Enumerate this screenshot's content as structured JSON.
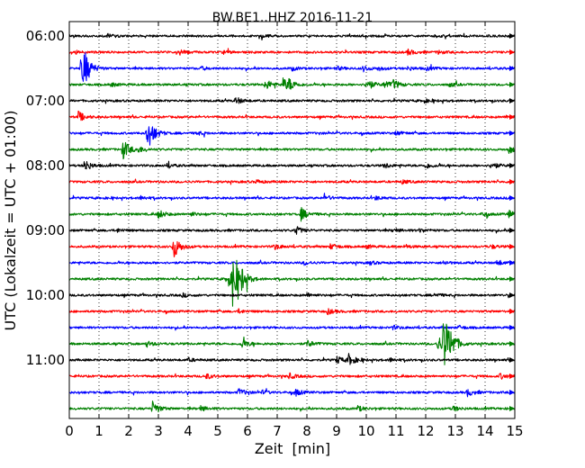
{
  "chart_data": {
    "type": "line",
    "title": "BW.BE1..HHZ 2016-11-21",
    "xlabel": "Zeit  [min]",
    "ylabel": "UTC (Lokalzeit = UTC + 01:00)",
    "xlim": [
      0,
      15
    ],
    "xticks": [
      "0",
      "1",
      "2",
      "3",
      "4",
      "5",
      "6",
      "7",
      "8",
      "9",
      "10",
      "11",
      "12",
      "13",
      "14",
      "15"
    ],
    "yticks": [
      {
        "label": "06:00",
        "row": 0
      },
      {
        "label": "07:00",
        "row": 4
      },
      {
        "label": "08:00",
        "row": 8
      },
      {
        "label": "09:00",
        "row": 12
      },
      {
        "label": "10:00",
        "row": 16
      },
      {
        "label": "11:00",
        "row": 20
      }
    ],
    "row_duration_min": 15,
    "grid": {
      "x": true,
      "y": false,
      "style": "dotted"
    },
    "color_cycle": [
      "#000000",
      "#ff0000",
      "#0000ff",
      "#008000"
    ],
    "noise_level": 1.2,
    "rows": [
      {
        "start": "06:00",
        "color": "#000000",
        "events": [
          [
            1.3,
            2
          ],
          [
            6.5,
            1.5
          ],
          [
            12.3,
            1.5
          ]
        ]
      },
      {
        "start": "06:15",
        "color": "#ff0000",
        "events": [
          [
            0.2,
            1.5
          ],
          [
            3.7,
            2.5
          ],
          [
            5.2,
            1.5
          ],
          [
            11.4,
            3
          ],
          [
            12.4,
            2
          ]
        ]
      },
      {
        "start": "06:30",
        "color": "#0000ff",
        "events": [
          [
            0.4,
            18
          ],
          [
            0.5,
            12
          ],
          [
            4.4,
            2
          ],
          [
            7.5,
            2
          ],
          [
            9,
            2
          ],
          [
            9.9,
            3
          ],
          [
            10.4,
            2
          ],
          [
            11.4,
            2
          ],
          [
            12,
            2
          ]
        ]
      },
      {
        "start": "06:45",
        "color": "#008000",
        "events": [
          [
            1.4,
            2
          ],
          [
            6.6,
            6
          ],
          [
            7.2,
            7
          ],
          [
            7.4,
            5
          ],
          [
            10,
            7
          ],
          [
            10.6,
            4
          ],
          [
            10.9,
            5
          ],
          [
            12.8,
            2
          ]
        ]
      },
      {
        "start": "07:00",
        "color": "#000000",
        "events": [
          [
            5.6,
            4
          ],
          [
            11.9,
            2
          ]
        ]
      },
      {
        "start": "07:15",
        "color": "#ff0000",
        "events": [
          [
            0.3,
            6
          ],
          [
            14.7,
            2
          ]
        ]
      },
      {
        "start": "07:30",
        "color": "#0000ff",
        "events": [
          [
            2.6,
            14
          ],
          [
            2.8,
            4
          ],
          [
            4.3,
            2
          ],
          [
            11,
            2
          ]
        ]
      },
      {
        "start": "07:45",
        "color": "#008000",
        "events": [
          [
            1.8,
            12
          ],
          [
            2.3,
            3
          ],
          [
            14.8,
            4
          ]
        ]
      },
      {
        "start": "08:00",
        "color": "#000000",
        "events": [
          [
            0.5,
            7
          ],
          [
            3.3,
            2
          ],
          [
            10.6,
            3
          ],
          [
            12,
            3
          ],
          [
            14.2,
            4
          ]
        ]
      },
      {
        "start": "08:15",
        "color": "#ff0000",
        "events": [
          [
            6.3,
            2
          ],
          [
            11.2,
            2
          ]
        ]
      },
      {
        "start": "08:30",
        "color": "#0000ff",
        "events": [
          [
            2.4,
            2
          ],
          [
            8.6,
            3
          ],
          [
            10.3,
            2
          ]
        ]
      },
      {
        "start": "08:45",
        "color": "#008000",
        "events": [
          [
            3,
            5
          ],
          [
            4.1,
            2
          ],
          [
            7.8,
            7
          ],
          [
            13.9,
            2
          ],
          [
            14.8,
            4
          ]
        ]
      },
      {
        "start": "09:00",
        "color": "#000000",
        "events": [
          [
            1.6,
            2
          ],
          [
            7.6,
            5
          ],
          [
            10.9,
            2
          ],
          [
            11.8,
            2
          ]
        ]
      },
      {
        "start": "09:15",
        "color": "#ff0000",
        "events": [
          [
            3.5,
            14
          ],
          [
            6.9,
            3
          ],
          [
            8.8,
            3
          ],
          [
            10,
            2
          ],
          [
            11.3,
            2
          ],
          [
            14.2,
            2
          ]
        ]
      },
      {
        "start": "09:30",
        "color": "#0000ff",
        "events": [
          [
            7.9,
            2
          ],
          [
            10.1,
            2
          ],
          [
            12.6,
            2
          ],
          [
            14.4,
            3
          ]
        ]
      },
      {
        "start": "09:45",
        "color": "#008000",
        "events": [
          [
            5.5,
            26
          ],
          [
            5.3,
            10
          ],
          [
            5.8,
            8
          ]
        ]
      },
      {
        "start": "10:00",
        "color": "#000000",
        "events": [
          [
            3.8,
            2
          ],
          [
            8,
            2
          ],
          [
            12.3,
            2
          ]
        ]
      },
      {
        "start": "10:15",
        "color": "#ff0000",
        "events": [
          [
            5.7,
            2
          ],
          [
            8.7,
            3
          ]
        ]
      },
      {
        "start": "10:30",
        "color": "#0000ff",
        "events": [
          [
            10.9,
            2
          ],
          [
            13.1,
            2
          ]
        ]
      },
      {
        "start": "10:45",
        "color": "#008000",
        "events": [
          [
            12.6,
            34
          ],
          [
            12.4,
            10
          ],
          [
            12.85,
            8
          ],
          [
            5.8,
            5
          ],
          [
            8,
            4
          ],
          [
            2.6,
            3
          ]
        ]
      },
      {
        "start": "11:00",
        "color": "#000000",
        "events": [
          [
            9.4,
            6
          ],
          [
            9,
            4
          ],
          [
            4,
            2
          ],
          [
            10.8,
            2
          ]
        ]
      },
      {
        "start": "11:15",
        "color": "#ff0000",
        "events": [
          [
            4.6,
            3
          ],
          [
            7.4,
            3
          ],
          [
            14.5,
            3
          ]
        ]
      },
      {
        "start": "11:30",
        "color": "#0000ff",
        "events": [
          [
            5.7,
            4
          ],
          [
            7.6,
            4
          ],
          [
            13.4,
            4
          ],
          [
            6.5,
            2
          ]
        ]
      },
      {
        "start": "11:45",
        "color": "#008000",
        "events": [
          [
            2.8,
            8
          ],
          [
            4.4,
            3
          ],
          [
            9.7,
            3
          ],
          [
            12.9,
            3
          ]
        ]
      }
    ]
  }
}
